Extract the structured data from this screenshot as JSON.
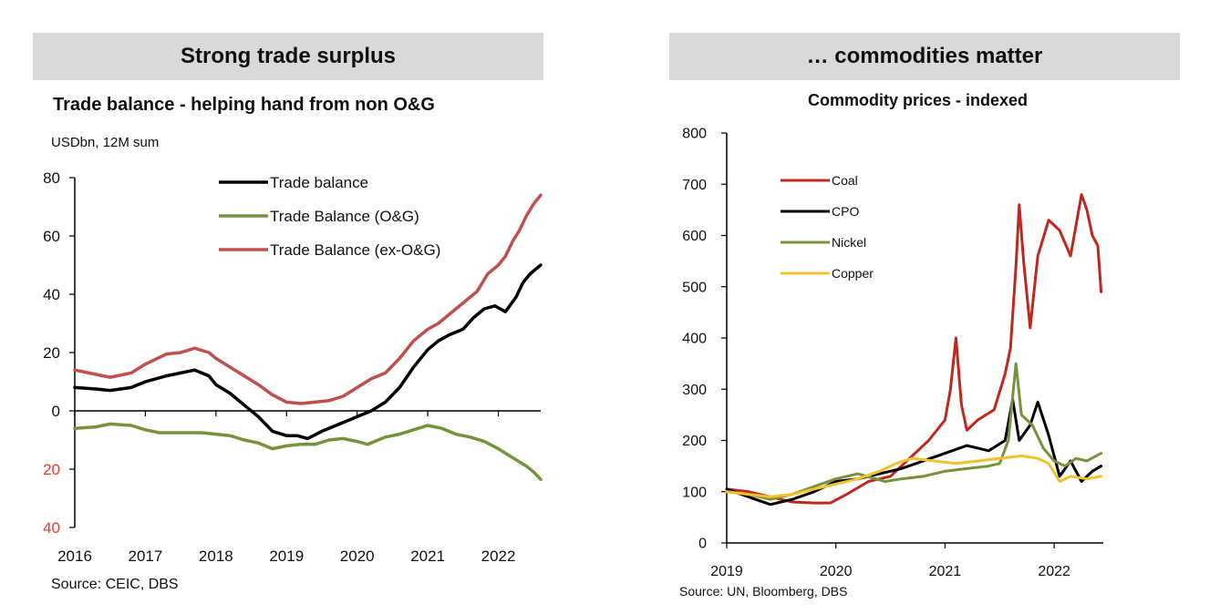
{
  "panels": {
    "left_header": "Strong trade surplus",
    "right_header": "… commodities matter"
  },
  "colors": {
    "header_bg": "#d9d9d9",
    "trade_balance": "#000000",
    "og": "#76933c",
    "ex_og": "#c0504d",
    "coal": "#c0281e",
    "cpo": "#000000",
    "nickel": "#76933c",
    "copper": "#f2c12e",
    "negative_tick": "#e8392b"
  },
  "chart_data": [
    {
      "type": "line",
      "title": "Trade balance - helping hand from non O&G",
      "ylabel": "USDbn, 12M sum",
      "source": "Source: CEIC, DBS",
      "ylim": [
        -40,
        80
      ],
      "xlim": [
        2016,
        2022.6
      ],
      "yticks": [
        80,
        60,
        40,
        20,
        0,
        -20,
        -40
      ],
      "ytick_labels": [
        "80",
        "60",
        "40",
        "20",
        "0",
        "20",
        "40"
      ],
      "xticks": [
        2016,
        2017,
        2018,
        2019,
        2020,
        2021,
        2022
      ],
      "xtick_labels": [
        "2016",
        "2017",
        "2018",
        "2019",
        "2020",
        "2021",
        "2022"
      ],
      "legend_position": "top-right",
      "grid": false,
      "series": [
        {
          "name": "Trade balance",
          "color": "#000000",
          "points": [
            [
              2016.0,
              8
            ],
            [
              2016.3,
              7.5
            ],
            [
              2016.5,
              7
            ],
            [
              2016.8,
              8
            ],
            [
              2017.0,
              10
            ],
            [
              2017.3,
              12
            ],
            [
              2017.5,
              13
            ],
            [
              2017.7,
              14
            ],
            [
              2017.9,
              12
            ],
            [
              2018.0,
              9
            ],
            [
              2018.2,
              6
            ],
            [
              2018.4,
              2
            ],
            [
              2018.6,
              -2
            ],
            [
              2018.8,
              -7
            ],
            [
              2019.0,
              -8.5
            ],
            [
              2019.15,
              -8.5
            ],
            [
              2019.3,
              -9.5
            ],
            [
              2019.5,
              -7
            ],
            [
              2019.7,
              -5
            ],
            [
              2019.9,
              -3
            ],
            [
              2020.0,
              -2
            ],
            [
              2020.2,
              0
            ],
            [
              2020.4,
              3
            ],
            [
              2020.6,
              8
            ],
            [
              2020.8,
              15
            ],
            [
              2021.0,
              21
            ],
            [
              2021.15,
              24
            ],
            [
              2021.3,
              26
            ],
            [
              2021.5,
              28
            ],
            [
              2021.65,
              32
            ],
            [
              2021.8,
              35
            ],
            [
              2021.95,
              36
            ],
            [
              2022.1,
              34
            ],
            [
              2022.25,
              39
            ],
            [
              2022.35,
              44
            ],
            [
              2022.45,
              47
            ],
            [
              2022.55,
              49
            ],
            [
              2022.6,
              50
            ]
          ]
        },
        {
          "name": "Trade Balance (O&G)",
          "color": "#76933c",
          "points": [
            [
              2016.0,
              -6
            ],
            [
              2016.3,
              -5.5
            ],
            [
              2016.5,
              -4.5
            ],
            [
              2016.8,
              -5
            ],
            [
              2017.0,
              -6.5
            ],
            [
              2017.2,
              -7.5
            ],
            [
              2017.5,
              -7.5
            ],
            [
              2017.8,
              -7.5
            ],
            [
              2018.0,
              -8
            ],
            [
              2018.2,
              -8.5
            ],
            [
              2018.4,
              -10
            ],
            [
              2018.6,
              -11
            ],
            [
              2018.8,
              -13
            ],
            [
              2019.0,
              -12
            ],
            [
              2019.2,
              -11.5
            ],
            [
              2019.4,
              -11.5
            ],
            [
              2019.6,
              -10
            ],
            [
              2019.8,
              -9.5
            ],
            [
              2020.0,
              -10.5
            ],
            [
              2020.15,
              -11.5
            ],
            [
              2020.4,
              -9
            ],
            [
              2020.6,
              -8
            ],
            [
              2020.8,
              -6.5
            ],
            [
              2021.0,
              -5
            ],
            [
              2021.2,
              -6
            ],
            [
              2021.4,
              -8
            ],
            [
              2021.6,
              -9
            ],
            [
              2021.8,
              -10.5
            ],
            [
              2022.0,
              -13
            ],
            [
              2022.2,
              -16
            ],
            [
              2022.4,
              -19
            ],
            [
              2022.5,
              -21
            ],
            [
              2022.6,
              -23.5
            ]
          ]
        },
        {
          "name": "Trade Balance (ex-O&G)",
          "color": "#c0504d",
          "points": [
            [
              2016.0,
              14
            ],
            [
              2016.2,
              13
            ],
            [
              2016.5,
              11.5
            ],
            [
              2016.8,
              13
            ],
            [
              2017.0,
              16
            ],
            [
              2017.3,
              19.5
            ],
            [
              2017.5,
              20
            ],
            [
              2017.7,
              21.5
            ],
            [
              2017.9,
              20
            ],
            [
              2018.0,
              18
            ],
            [
              2018.2,
              15
            ],
            [
              2018.4,
              12
            ],
            [
              2018.6,
              9
            ],
            [
              2018.8,
              5.5
            ],
            [
              2019.0,
              3
            ],
            [
              2019.2,
              2.5
            ],
            [
              2019.4,
              3
            ],
            [
              2019.6,
              3.5
            ],
            [
              2019.8,
              5
            ],
            [
              2020.0,
              8
            ],
            [
              2020.2,
              11
            ],
            [
              2020.4,
              13
            ],
            [
              2020.6,
              18
            ],
            [
              2020.8,
              24
            ],
            [
              2021.0,
              28
            ],
            [
              2021.15,
              30
            ],
            [
              2021.3,
              33
            ],
            [
              2021.5,
              37
            ],
            [
              2021.7,
              41
            ],
            [
              2021.85,
              47
            ],
            [
              2022.0,
              50
            ],
            [
              2022.1,
              53
            ],
            [
              2022.2,
              58
            ],
            [
              2022.3,
              62
            ],
            [
              2022.4,
              67
            ],
            [
              2022.5,
              71
            ],
            [
              2022.6,
              74
            ]
          ]
        }
      ]
    },
    {
      "type": "line",
      "title": "Commodity prices - indexed",
      "source": "Source: UN, Bloomberg, DBS",
      "ylim": [
        0,
        800
      ],
      "xlim": [
        2019,
        2022.45
      ],
      "yticks": [
        0,
        100,
        200,
        300,
        400,
        500,
        600,
        700,
        800
      ],
      "ytick_labels": [
        "0",
        "100",
        "200",
        "300",
        "400",
        "500",
        "600",
        "700",
        "800"
      ],
      "xticks": [
        2019,
        2020,
        2021,
        2022
      ],
      "xtick_labels": [
        "2019",
        "2020",
        "2021",
        "2022"
      ],
      "legend_position": "top-left",
      "grid": false,
      "series": [
        {
          "name": "Coal",
          "color": "#c0281e",
          "points": [
            [
              2019.0,
              105
            ],
            [
              2019.2,
              100
            ],
            [
              2019.4,
              90
            ],
            [
              2019.6,
              80
            ],
            [
              2019.8,
              78
            ],
            [
              2019.95,
              78
            ],
            [
              2020.1,
              95
            ],
            [
              2020.3,
              120
            ],
            [
              2020.5,
              130
            ],
            [
              2020.7,
              170
            ],
            [
              2020.85,
              200
            ],
            [
              2021.0,
              240
            ],
            [
              2021.05,
              300
            ],
            [
              2021.1,
              400
            ],
            [
              2021.15,
              270
            ],
            [
              2021.2,
              220
            ],
            [
              2021.3,
              240
            ],
            [
              2021.45,
              260
            ],
            [
              2021.55,
              330
            ],
            [
              2021.6,
              380
            ],
            [
              2021.65,
              540
            ],
            [
              2021.68,
              660
            ],
            [
              2021.72,
              550
            ],
            [
              2021.78,
              420
            ],
            [
              2021.85,
              560
            ],
            [
              2021.95,
              630
            ],
            [
              2022.05,
              610
            ],
            [
              2022.15,
              560
            ],
            [
              2022.25,
              680
            ],
            [
              2022.3,
              650
            ],
            [
              2022.35,
              600
            ],
            [
              2022.4,
              580
            ],
            [
              2022.43,
              490
            ]
          ]
        },
        {
          "name": "CPO",
          "color": "#000000",
          "points": [
            [
              2019.0,
              105
            ],
            [
              2019.2,
              90
            ],
            [
              2019.4,
              75
            ],
            [
              2019.6,
              85
            ],
            [
              2019.8,
              100
            ],
            [
              2020.0,
              120
            ],
            [
              2020.2,
              125
            ],
            [
              2020.4,
              135
            ],
            [
              2020.6,
              145
            ],
            [
              2020.8,
              160
            ],
            [
              2021.0,
              175
            ],
            [
              2021.2,
              190
            ],
            [
              2021.4,
              180
            ],
            [
              2021.55,
              200
            ],
            [
              2021.62,
              280
            ],
            [
              2021.68,
              200
            ],
            [
              2021.78,
              230
            ],
            [
              2021.85,
              275
            ],
            [
              2021.95,
              210
            ],
            [
              2022.05,
              130
            ],
            [
              2022.15,
              160
            ],
            [
              2022.25,
              120
            ],
            [
              2022.35,
              140
            ],
            [
              2022.43,
              150
            ]
          ]
        },
        {
          "name": "Nickel",
          "color": "#76933c",
          "points": [
            [
              2019.0,
              100
            ],
            [
              2019.2,
              95
            ],
            [
              2019.4,
              85
            ],
            [
              2019.6,
              95
            ],
            [
              2019.8,
              110
            ],
            [
              2020.0,
              125
            ],
            [
              2020.2,
              135
            ],
            [
              2020.45,
              120
            ],
            [
              2020.6,
              125
            ],
            [
              2020.8,
              130
            ],
            [
              2021.0,
              140
            ],
            [
              2021.2,
              145
            ],
            [
              2021.4,
              150
            ],
            [
              2021.5,
              155
            ],
            [
              2021.58,
              200
            ],
            [
              2021.65,
              350
            ],
            [
              2021.7,
              250
            ],
            [
              2021.8,
              230
            ],
            [
              2021.9,
              185
            ],
            [
              2022.0,
              160
            ],
            [
              2022.1,
              150
            ],
            [
              2022.2,
              165
            ],
            [
              2022.3,
              160
            ],
            [
              2022.43,
              175
            ]
          ]
        },
        {
          "name": "Copper",
          "color": "#f2c12e",
          "points": [
            [
              2019.0,
              100
            ],
            [
              2019.2,
              95
            ],
            [
              2019.4,
              90
            ],
            [
              2019.6,
              95
            ],
            [
              2019.8,
              105
            ],
            [
              2020.0,
              115
            ],
            [
              2020.2,
              125
            ],
            [
              2020.4,
              140
            ],
            [
              2020.55,
              155
            ],
            [
              2020.7,
              165
            ],
            [
              2020.9,
              160
            ],
            [
              2021.1,
              155
            ],
            [
              2021.3,
              160
            ],
            [
              2021.5,
              165
            ],
            [
              2021.7,
              170
            ],
            [
              2021.85,
              165
            ],
            [
              2021.95,
              155
            ],
            [
              2022.05,
              120
            ],
            [
              2022.15,
              130
            ],
            [
              2022.3,
              125
            ],
            [
              2022.43,
              130
            ]
          ]
        }
      ]
    }
  ]
}
